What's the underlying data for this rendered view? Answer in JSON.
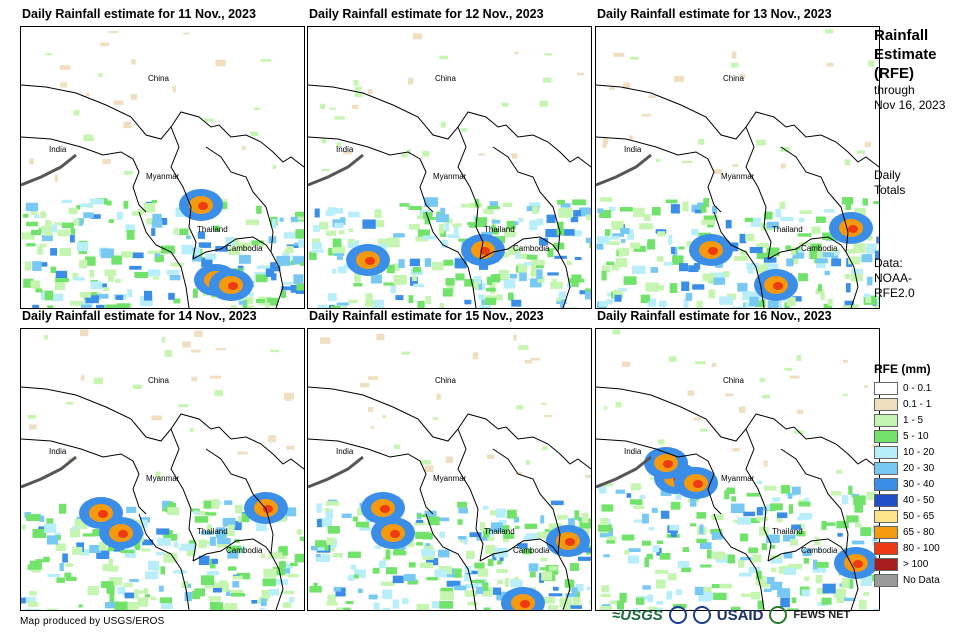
{
  "panels": [
    {
      "title": "Daily Rainfall estimate for 11 Nov., 2023",
      "heavy_cells": [
        [
          195,
          260
        ],
        [
          210,
          265
        ],
        [
          180,
          185
        ]
      ]
    },
    {
      "title": "Daily Rainfall estimate for 12 Nov., 2023",
      "heavy_cells": [
        [
          175,
          230
        ],
        [
          60,
          240
        ]
      ]
    },
    {
      "title": "Daily Rainfall estimate for 13 Nov., 2023",
      "heavy_cells": [
        [
          115,
          230
        ],
        [
          180,
          265
        ],
        [
          255,
          208
        ]
      ]
    },
    {
      "title": "Daily Rainfall estimate for 14 Nov., 2023",
      "heavy_cells": [
        [
          80,
          500
        ],
        [
          100,
          520
        ],
        [
          245,
          495
        ]
      ]
    },
    {
      "title": "Daily Rainfall estimate for 15 Nov., 2023",
      "heavy_cells": [
        [
          75,
          495
        ],
        [
          85,
          520
        ],
        [
          215,
          590
        ],
        [
          260,
          528
        ]
      ]
    },
    {
      "title": "Daily Rainfall estimate for 16 Nov., 2023",
      "heavy_cells": [
        [
          80,
          465
        ],
        [
          70,
          450
        ],
        [
          100,
          470
        ],
        [
          260,
          550
        ]
      ]
    }
  ],
  "labels": {
    "china": "China",
    "india": "India",
    "myanmar": "Myanmar",
    "thailand": "Thailand",
    "cambodia": "Cambodia"
  },
  "side": {
    "title_line1": "Rainfall",
    "title_line2": "Estimate",
    "title_line3": "(RFE)",
    "through": "through",
    "date": "Nov 16, 2023",
    "daily": "Daily",
    "totals": "Totals",
    "data_label": "Data:",
    "data_source1": "NOAA-",
    "data_source2": "RFE2.0"
  },
  "legend": {
    "title": "RFE (mm)",
    "items": [
      {
        "label": "0 - 0.1",
        "color": "#ffffff"
      },
      {
        "label": "0.1 - 1",
        "color": "#efdfc0"
      },
      {
        "label": "1 - 5",
        "color": "#c5f5b0"
      },
      {
        "label": "5 - 10",
        "color": "#72e36a"
      },
      {
        "label": "10 - 20",
        "color": "#b8eefa"
      },
      {
        "label": "20 - 30",
        "color": "#78c8f4"
      },
      {
        "label": "30 - 40",
        "color": "#3a8ee8"
      },
      {
        "label": "40 - 50",
        "color": "#1f50c8"
      },
      {
        "label": "50 - 65",
        "color": "#fbe48a"
      },
      {
        "label": "65 - 80",
        "color": "#f59a0e"
      },
      {
        "label": "80 - 100",
        "color": "#ee3a12"
      },
      {
        "label": "> 100",
        "color": "#a61c1c"
      },
      {
        "label": "No Data",
        "color": "#9a9a9a"
      }
    ]
  },
  "credit": "Map produced by USGS/EROS",
  "logos": {
    "usgs": "≈USGS",
    "usaid": "USAID",
    "fews": "FEWS NET"
  }
}
